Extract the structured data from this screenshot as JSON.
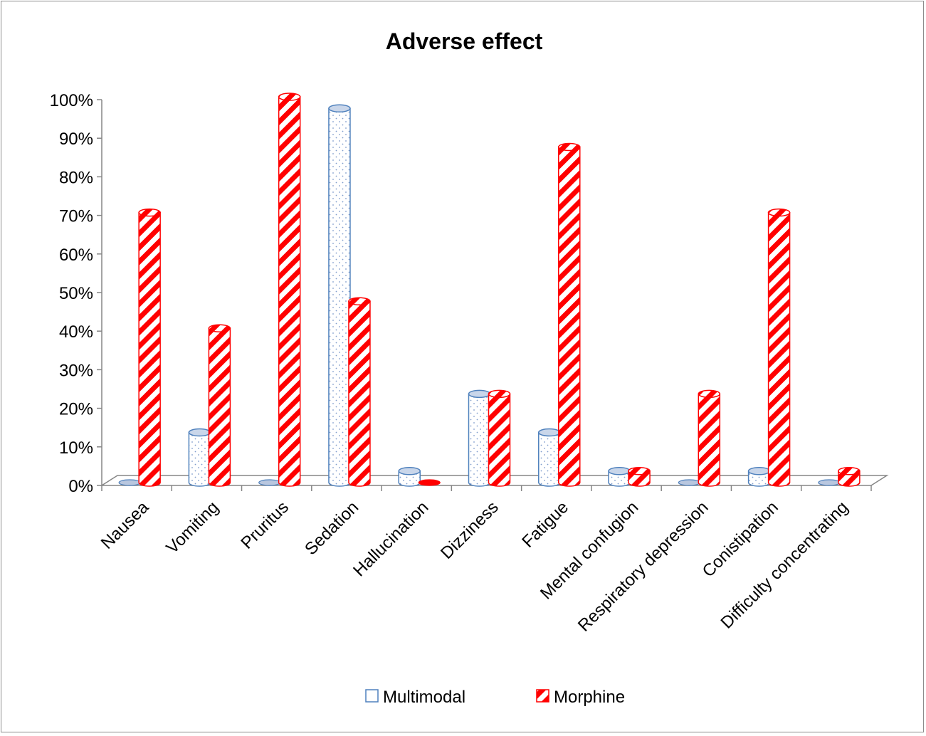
{
  "chart_data": {
    "type": "bar",
    "style": "3d-cylinder",
    "title": "Adverse effect",
    "xlabel": "",
    "ylabel": "",
    "ylim": [
      0,
      100
    ],
    "y_ticks": [
      "0%",
      "10%",
      "20%",
      "30%",
      "40%",
      "50%",
      "60%",
      "70%",
      "80%",
      "90%",
      "100%"
    ],
    "categories": [
      "Nausea",
      "Vomiting",
      "Pruritus",
      "Sedation",
      "Hallucination",
      "Dizziness",
      "Fatigue",
      "Mental confugion",
      "Respiratory depression",
      "Conistipation",
      "Difficulty concentrating"
    ],
    "series": [
      {
        "name": "Multimodal",
        "values": [
          0,
          13,
          0,
          97,
          3,
          23,
          13,
          3,
          0,
          3,
          0
        ],
        "color": "#4f81bd",
        "fill": "dotted"
      },
      {
        "name": "Morphine",
        "values": [
          70,
          40,
          100,
          47,
          0,
          23,
          87,
          3,
          23,
          70,
          3
        ],
        "color": "#ff0000",
        "fill": "red-diagonal-stripes"
      }
    ],
    "grid": false,
    "legend_position": "bottom"
  }
}
